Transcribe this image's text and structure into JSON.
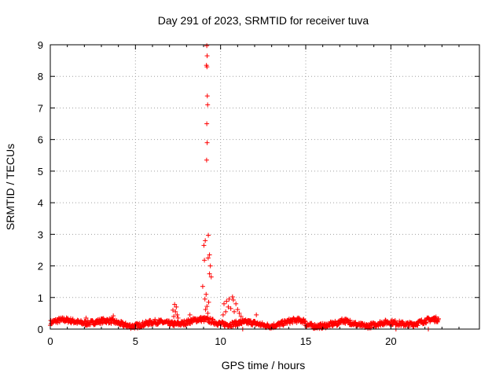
{
  "chart_data": {
    "type": "scatter",
    "title": "Day 291 of 2023, SRMTID for receiver tuva",
    "xlabel": "GPS time / hours",
    "ylabel": "SRMTID / TECUs",
    "xlim": [
      0,
      25.2
    ],
    "ylim": [
      0,
      9
    ],
    "xticks": [
      "0",
      "5",
      "10",
      "15",
      "20"
    ],
    "yticks": [
      "0",
      "1",
      "2",
      "3",
      "4",
      "5",
      "6",
      "7",
      "8",
      "9"
    ],
    "grid": true,
    "marker": "+",
    "series": [
      {
        "color": "#ff0000",
        "points": [
          [
            9.19,
            8.97
          ],
          [
            9.21,
            8.65
          ],
          [
            9.17,
            8.35
          ],
          [
            9.2,
            8.3
          ],
          [
            9.22,
            7.38
          ],
          [
            9.24,
            7.1
          ],
          [
            9.19,
            6.5
          ],
          [
            9.21,
            5.9
          ],
          [
            9.18,
            5.35
          ],
          [
            9.28,
            2.97
          ],
          [
            9.1,
            2.8
          ],
          [
            9.02,
            2.65
          ],
          [
            9.35,
            2.35
          ],
          [
            9.27,
            2.25
          ],
          [
            9.05,
            2.18
          ],
          [
            9.4,
            2.0
          ],
          [
            9.35,
            1.75
          ],
          [
            9.45,
            1.65
          ],
          [
            8.95,
            1.35
          ],
          [
            9.15,
            1.1
          ],
          [
            9.08,
            0.95
          ],
          [
            9.3,
            0.85
          ],
          [
            9.2,
            0.72
          ],
          [
            9.12,
            0.62
          ],
          [
            9.25,
            0.5
          ],
          [
            7.3,
            0.78
          ],
          [
            7.4,
            0.7
          ],
          [
            7.2,
            0.6
          ],
          [
            7.35,
            0.55
          ],
          [
            7.45,
            0.45
          ],
          [
            7.25,
            0.4
          ],
          [
            7.5,
            0.35
          ],
          [
            8.2,
            0.45
          ],
          [
            10.35,
            0.88
          ],
          [
            10.5,
            0.95
          ],
          [
            10.7,
            1.02
          ],
          [
            10.75,
            0.92
          ],
          [
            10.2,
            0.8
          ],
          [
            10.9,
            0.8
          ],
          [
            10.45,
            0.7
          ],
          [
            10.6,
            0.65
          ],
          [
            11.0,
            0.62
          ],
          [
            10.3,
            0.55
          ],
          [
            11.1,
            0.5
          ],
          [
            10.8,
            0.55
          ],
          [
            10.15,
            0.45
          ],
          [
            11.2,
            0.4
          ],
          [
            11.3,
            0.3
          ],
          [
            11.4,
            0.22
          ],
          [
            11.3,
            0.0
          ],
          [
            12.1,
            0.45
          ],
          [
            3.7,
            0.42
          ],
          [
            2.1,
            0.35
          ],
          [
            17.6,
            0.28
          ],
          [
            22.6,
            0.35
          ],
          [
            20.3,
            0.0
          ],
          [
            22.2,
            0.0
          ],
          [
            16.0,
            0.05
          ]
        ]
      }
    ]
  }
}
